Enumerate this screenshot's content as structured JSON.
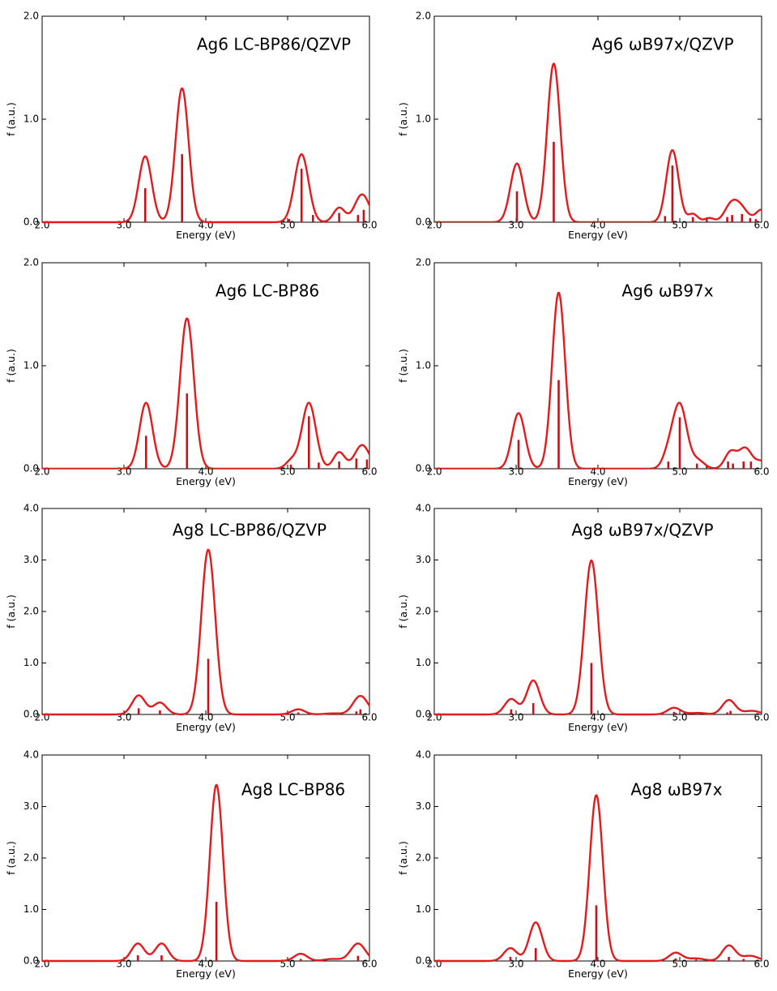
{
  "chart_data": [
    {
      "type": "line",
      "title": "Ag6  LC-BP86/QZVP",
      "xlabel": "Energy (eV)",
      "ylabel": "f (a.u.)",
      "xlim": [
        2.0,
        6.0
      ],
      "ylim": [
        0.0,
        2.0
      ],
      "x_ticks": [
        "2.0",
        "3.0",
        "4.0",
        "5.0",
        "6.0"
      ],
      "y_ticks": [
        "0.0",
        "1.0",
        "2.0"
      ],
      "grid": false,
      "sticks": [
        {
          "x": 3.26,
          "f": 0.33
        },
        {
          "x": 3.71,
          "f": 0.66
        },
        {
          "x": 5.02,
          "f": 0.03
        },
        {
          "x": 5.17,
          "f": 0.52
        },
        {
          "x": 5.31,
          "f": 0.07
        },
        {
          "x": 5.63,
          "f": 0.09
        },
        {
          "x": 5.86,
          "f": 0.07
        },
        {
          "x": 5.93,
          "f": 0.12
        }
      ],
      "peaks": [
        {
          "x": 3.26,
          "height": 0.64,
          "width": 0.08
        },
        {
          "x": 3.71,
          "height": 1.3,
          "width": 0.08
        },
        {
          "x": 5.17,
          "height": 0.66,
          "width": 0.085
        },
        {
          "x": 5.63,
          "height": 0.14,
          "width": 0.07
        },
        {
          "x": 5.91,
          "height": 0.27,
          "width": 0.09
        }
      ]
    },
    {
      "type": "line",
      "title": "Ag6  ωB97x/QZVP",
      "xlabel": "Energy (eV)",
      "ylabel": "f (a.u.)",
      "xlim": [
        2.0,
        6.0
      ],
      "ylim": [
        0.0,
        2.0
      ],
      "x_ticks": [
        "2.0",
        "3.0",
        "4.0",
        "5.0",
        "6.0"
      ],
      "y_ticks": [
        "0.0",
        "1.0",
        "2.0"
      ],
      "grid": false,
      "sticks": [
        {
          "x": 3.01,
          "f": 0.3
        },
        {
          "x": 3.46,
          "f": 0.78
        },
        {
          "x": 4.82,
          "f": 0.06
        },
        {
          "x": 4.91,
          "f": 0.55
        },
        {
          "x": 5.16,
          "f": 0.05
        },
        {
          "x": 5.33,
          "f": 0.03
        },
        {
          "x": 5.58,
          "f": 0.05
        },
        {
          "x": 5.64,
          "f": 0.07
        },
        {
          "x": 5.76,
          "f": 0.08
        },
        {
          "x": 5.86,
          "f": 0.04
        },
        {
          "x": 5.93,
          "f": 0.03
        }
      ],
      "peaks": [
        {
          "x": 3.01,
          "height": 0.57,
          "width": 0.08
        },
        {
          "x": 3.46,
          "height": 1.54,
          "width": 0.08
        },
        {
          "x": 4.91,
          "height": 0.7,
          "width": 0.075
        },
        {
          "x": 5.16,
          "height": 0.08,
          "width": 0.06
        },
        {
          "x": 5.36,
          "height": 0.04,
          "width": 0.06
        },
        {
          "x": 5.62,
          "height": 0.14,
          "width": 0.08
        },
        {
          "x": 5.74,
          "height": 0.14,
          "width": 0.09
        },
        {
          "x": 6.0,
          "height": 0.12,
          "width": 0.07
        }
      ]
    },
    {
      "type": "line",
      "title": "Ag6  LC-BP86",
      "xlabel": "Energy (eV)",
      "ylabel": "f (a.u.)",
      "xlim": [
        2.0,
        6.0
      ],
      "ylim": [
        0.0,
        2.0
      ],
      "x_ticks": [
        "2.0",
        "3.0",
        "4.0",
        "5.0",
        "6.0"
      ],
      "y_ticks": [
        "0.0",
        "1.0",
        "2.0"
      ],
      "grid": false,
      "sticks": [
        {
          "x": 3.27,
          "f": 0.32
        },
        {
          "x": 3.77,
          "f": 0.73
        },
        {
          "x": 5.04,
          "f": 0.04
        },
        {
          "x": 5.26,
          "f": 0.51
        },
        {
          "x": 5.38,
          "f": 0.06
        },
        {
          "x": 5.63,
          "f": 0.07
        },
        {
          "x": 5.84,
          "f": 0.1
        },
        {
          "x": 5.97,
          "f": 0.09
        }
      ],
      "peaks": [
        {
          "x": 3.27,
          "height": 0.64,
          "width": 0.08
        },
        {
          "x": 3.77,
          "height": 1.46,
          "width": 0.085
        },
        {
          "x": 5.05,
          "height": 0.08,
          "width": 0.07
        },
        {
          "x": 5.26,
          "height": 0.64,
          "width": 0.085
        },
        {
          "x": 5.63,
          "height": 0.16,
          "width": 0.07
        },
        {
          "x": 5.91,
          "height": 0.23,
          "width": 0.09
        }
      ]
    },
    {
      "type": "line",
      "title": "Ag6  ωB97x",
      "xlabel": "Energy (eV)",
      "ylabel": "f (a.u.)",
      "xlim": [
        2.0,
        6.0
      ],
      "ylim": [
        0.0,
        2.0
      ],
      "x_ticks": [
        "2.0",
        "3.0",
        "4.0",
        "5.0",
        "6.0"
      ],
      "y_ticks": [
        "0.0",
        "1.0",
        "2.0"
      ],
      "grid": false,
      "sticks": [
        {
          "x": 3.03,
          "f": 0.28
        },
        {
          "x": 3.52,
          "f": 0.86
        },
        {
          "x": 4.86,
          "f": 0.07
        },
        {
          "x": 5.0,
          "f": 0.5
        },
        {
          "x": 5.21,
          "f": 0.05
        },
        {
          "x": 5.33,
          "f": 0.03
        },
        {
          "x": 5.59,
          "f": 0.07
        },
        {
          "x": 5.65,
          "f": 0.05
        },
        {
          "x": 5.78,
          "f": 0.07
        },
        {
          "x": 5.87,
          "f": 0.07
        }
      ],
      "peaks": [
        {
          "x": 3.03,
          "height": 0.54,
          "width": 0.08
        },
        {
          "x": 3.52,
          "height": 1.71,
          "width": 0.08
        },
        {
          "x": 4.86,
          "height": 0.13,
          "width": 0.07
        },
        {
          "x": 5.0,
          "height": 0.62,
          "width": 0.085
        },
        {
          "x": 5.22,
          "height": 0.08,
          "width": 0.08
        },
        {
          "x": 5.62,
          "height": 0.16,
          "width": 0.07
        },
        {
          "x": 5.8,
          "height": 0.2,
          "width": 0.08
        },
        {
          "x": 6.0,
          "height": 0.07,
          "width": 0.07
        }
      ]
    },
    {
      "type": "line",
      "title": "Ag8  LC-BP86/QZVP",
      "xlabel": "Energy (eV)",
      "ylabel": "f (a.u.)",
      "xlim": [
        2.0,
        6.0
      ],
      "ylim": [
        0.0,
        4.0
      ],
      "x_ticks": [
        "2.0",
        "3.0",
        "4.0",
        "5.0",
        "6.0"
      ],
      "y_ticks": [
        "0.0",
        "1.0",
        "2.0",
        "3.0",
        "4.0"
      ],
      "grid": false,
      "sticks": [
        {
          "x": 3.18,
          "f": 0.12
        },
        {
          "x": 3.44,
          "f": 0.08
        },
        {
          "x": 4.03,
          "f": 1.08
        },
        {
          "x": 5.13,
          "f": 0.04
        },
        {
          "x": 5.84,
          "f": 0.06
        },
        {
          "x": 5.89,
          "f": 0.1
        }
      ],
      "peaks": [
        {
          "x": 3.18,
          "height": 0.37,
          "width": 0.08
        },
        {
          "x": 3.44,
          "height": 0.23,
          "width": 0.08
        },
        {
          "x": 4.03,
          "height": 3.2,
          "width": 0.085
        },
        {
          "x": 5.13,
          "height": 0.1,
          "width": 0.08
        },
        {
          "x": 5.55,
          "height": 0.02,
          "width": 0.1
        },
        {
          "x": 5.89,
          "height": 0.36,
          "width": 0.09
        }
      ]
    },
    {
      "type": "line",
      "title": "Ag8  ωB97x/QZVP",
      "xlabel": "Energy (eV)",
      "ylabel": "f (a.u.)",
      "xlim": [
        2.0,
        6.0
      ],
      "ylim": [
        0.0,
        4.0
      ],
      "x_ticks": [
        "2.0",
        "3.0",
        "4.0",
        "5.0",
        "6.0"
      ],
      "y_ticks": [
        "0.0",
        "1.0",
        "2.0",
        "3.0",
        "4.0"
      ],
      "grid": false,
      "sticks": [
        {
          "x": 2.94,
          "f": 0.1
        },
        {
          "x": 3.21,
          "f": 0.22
        },
        {
          "x": 3.92,
          "f": 1.0
        },
        {
          "x": 4.93,
          "f": 0.05
        },
        {
          "x": 5.58,
          "f": 0.04
        },
        {
          "x": 5.62,
          "f": 0.07
        }
      ],
      "peaks": [
        {
          "x": 2.94,
          "height": 0.3,
          "width": 0.08
        },
        {
          "x": 3.21,
          "height": 0.66,
          "width": 0.08
        },
        {
          "x": 3.92,
          "height": 2.99,
          "width": 0.085
        },
        {
          "x": 4.93,
          "height": 0.13,
          "width": 0.08
        },
        {
          "x": 5.22,
          "height": 0.03,
          "width": 0.1
        },
        {
          "x": 5.6,
          "height": 0.28,
          "width": 0.08
        },
        {
          "x": 5.88,
          "height": 0.07,
          "width": 0.1
        }
      ]
    },
    {
      "type": "line",
      "title": "Ag8  LC-BP86",
      "xlabel": "Energy (eV)",
      "ylabel": "f (a.u.)",
      "xlim": [
        2.0,
        6.0
      ],
      "ylim": [
        0.0,
        4.0
      ],
      "x_ticks": [
        "2.0",
        "3.0",
        "4.0",
        "5.0",
        "6.0"
      ],
      "y_ticks": [
        "0.0",
        "1.0",
        "2.0",
        "3.0",
        "4.0"
      ],
      "grid": false,
      "sticks": [
        {
          "x": 3.17,
          "f": 0.11
        },
        {
          "x": 3.46,
          "f": 0.11
        },
        {
          "x": 4.13,
          "f": 1.15
        },
        {
          "x": 5.16,
          "f": 0.04
        },
        {
          "x": 5.86,
          "f": 0.1
        }
      ],
      "peaks": [
        {
          "x": 3.17,
          "height": 0.34,
          "width": 0.08
        },
        {
          "x": 3.46,
          "height": 0.34,
          "width": 0.08
        },
        {
          "x": 4.13,
          "height": 3.42,
          "width": 0.08
        },
        {
          "x": 5.16,
          "height": 0.14,
          "width": 0.08
        },
        {
          "x": 5.55,
          "height": 0.04,
          "width": 0.1
        },
        {
          "x": 5.86,
          "height": 0.34,
          "width": 0.09
        }
      ]
    },
    {
      "type": "line",
      "title": "Ag8  ωB97x",
      "xlabel": "Energy (eV)",
      "ylabel": "f (a.u.)",
      "xlim": [
        2.0,
        6.0
      ],
      "ylim": [
        0.0,
        4.0
      ],
      "x_ticks": [
        "2.0",
        "3.0",
        "4.0",
        "5.0",
        "6.0"
      ],
      "y_ticks": [
        "0.0",
        "1.0",
        "2.0",
        "3.0",
        "4.0"
      ],
      "grid": false,
      "sticks": [
        {
          "x": 2.93,
          "f": 0.08
        },
        {
          "x": 3.24,
          "f": 0.25
        },
        {
          "x": 3.98,
          "f": 1.08
        },
        {
          "x": 4.95,
          "f": 0.05
        },
        {
          "x": 5.2,
          "f": 0.03
        },
        {
          "x": 5.6,
          "f": 0.08
        },
        {
          "x": 5.78,
          "f": 0.04
        }
      ],
      "peaks": [
        {
          "x": 2.93,
          "height": 0.25,
          "width": 0.08
        },
        {
          "x": 3.24,
          "height": 0.75,
          "width": 0.08
        },
        {
          "x": 3.98,
          "height": 3.22,
          "width": 0.08
        },
        {
          "x": 4.95,
          "height": 0.16,
          "width": 0.08
        },
        {
          "x": 5.2,
          "height": 0.05,
          "width": 0.1
        },
        {
          "x": 5.6,
          "height": 0.3,
          "width": 0.08
        },
        {
          "x": 5.86,
          "height": 0.1,
          "width": 0.1
        }
      ]
    }
  ],
  "colors": {
    "spectrum": "#e41a1c",
    "sticks": "#c4111a",
    "axes": "#000000",
    "background": "#ffffff"
  }
}
